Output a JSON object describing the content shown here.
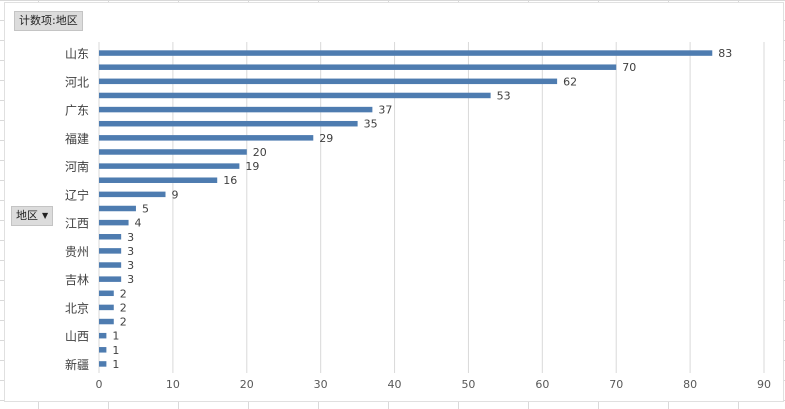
{
  "pivot": {
    "value_field_button": "计数项:地区",
    "row_field_button": "地区",
    "row_field_dropdown_icon": "dropdown-arrow-icon"
  },
  "colors": {
    "bar": "#4e7cb0",
    "gridline": "#d9d9d9"
  },
  "chart_data": {
    "type": "bar",
    "orientation": "horizontal",
    "title": "",
    "xlabel": "",
    "ylabel": "",
    "xlim": [
      0,
      90
    ],
    "x_ticks": [
      0,
      10,
      20,
      30,
      40,
      50,
      60,
      70,
      80,
      90
    ],
    "grid": "vertical",
    "categories": [
      "山东",
      "",
      "河北",
      "",
      "广东",
      "",
      "福建",
      "",
      "河南",
      "",
      "辽宁",
      "",
      "江西",
      "",
      "贵州",
      "",
      "吉林",
      "",
      "北京",
      "",
      "山西",
      "",
      "新疆"
    ],
    "values": [
      83,
      70,
      62,
      53,
      37,
      35,
      29,
      20,
      19,
      16,
      9,
      5,
      4,
      3,
      3,
      3,
      3,
      2,
      2,
      2,
      1,
      1,
      1
    ]
  }
}
